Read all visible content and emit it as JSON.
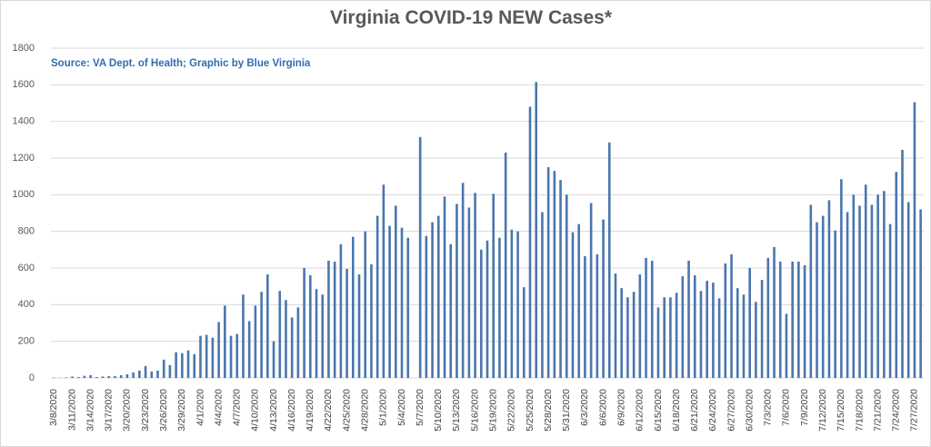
{
  "chart_data": {
    "type": "bar",
    "title": "Virginia COVID-19 NEW Cases*",
    "subtitle": "Source: VA Dept. of Health; Graphic by Blue Virginia",
    "color": "#4a76ae",
    "grid": true,
    "ylim": [
      0,
      1800
    ],
    "yticks": [
      0,
      200,
      400,
      600,
      800,
      1000,
      1200,
      1400,
      1600,
      1800
    ],
    "categories": [
      "3/8/2020",
      null,
      null,
      "3/11/2020",
      null,
      null,
      "3/14/2020",
      null,
      null,
      "3/17/2020",
      null,
      null,
      "3/20/2020",
      null,
      null,
      "3/23/2020",
      null,
      null,
      "3/26/2020",
      null,
      null,
      "3/29/2020",
      null,
      null,
      "4/1/2020",
      null,
      null,
      "4/4/2020",
      null,
      null,
      "4/7/2020",
      null,
      null,
      "4/10/2020",
      null,
      null,
      "4/13/2020",
      null,
      null,
      "4/16/2020",
      null,
      null,
      "4/19/2020",
      null,
      null,
      "4/22/2020",
      null,
      null,
      "4/25/2020",
      null,
      null,
      "4/28/2020",
      null,
      null,
      "5/1/2020",
      null,
      null,
      "5/4/2020",
      null,
      null,
      "5/7/2020",
      null,
      null,
      "5/10/2020",
      null,
      null,
      "5/13/2020",
      null,
      null,
      "5/16/2020",
      null,
      null,
      "5/19/2020",
      null,
      null,
      "5/22/2020",
      null,
      null,
      "5/25/2020",
      null,
      null,
      "5/28/2020",
      null,
      null,
      "5/31/2020",
      null,
      null,
      "6/3/2020",
      null,
      null,
      "6/6/2020",
      null,
      null,
      "6/9/2020",
      null,
      null,
      "6/12/2020",
      null,
      null,
      "6/15/2020",
      null,
      null,
      "6/18/2020",
      null,
      null,
      "6/21/2020",
      null,
      null,
      "6/24/2020",
      null,
      null,
      "6/27/2020",
      null,
      null,
      "6/30/2020",
      null,
      null,
      "7/3/2020",
      null,
      null,
      "7/6/2020",
      null,
      null,
      "7/9/2020",
      null,
      null,
      "7/12/2020",
      null,
      null,
      "7/15/2020",
      null,
      null,
      "7/18/2020",
      null,
      null,
      "7/21/2020",
      null,
      null,
      "7/24/2020",
      null,
      null,
      "7/27/2020",
      null
    ],
    "values": [
      2,
      1,
      3,
      8,
      5,
      12,
      15,
      5,
      8,
      10,
      10,
      15,
      20,
      30,
      40,
      65,
      35,
      40,
      100,
      70,
      140,
      135,
      150,
      130,
      230,
      235,
      220,
      305,
      395,
      230,
      240,
      455,
      310,
      395,
      470,
      565,
      200,
      475,
      425,
      330,
      385,
      600,
      560,
      485,
      455,
      640,
      635,
      730,
      595,
      770,
      565,
      800,
      620,
      885,
      1055,
      830,
      940,
      820,
      765,
      0,
      1315,
      775,
      850,
      885,
      990,
      730,
      950,
      1065,
      930,
      1010,
      700,
      750,
      1005,
      765,
      1230,
      810,
      800,
      495,
      1480,
      1615,
      905,
      1150,
      1130,
      1080,
      1000,
      795,
      840,
      665,
      955,
      675,
      865,
      1285,
      570,
      490,
      440,
      470,
      565,
      655,
      640,
      385,
      440,
      440,
      465,
      555,
      640,
      560,
      475,
      530,
      520,
      435,
      625,
      675,
      490,
      455,
      600,
      415,
      535,
      655,
      715,
      635,
      350,
      635,
      635,
      615,
      945,
      850,
      885,
      970,
      805,
      1085,
      905,
      1000,
      940,
      1055,
      945,
      1000,
      1020,
      840,
      1125,
      1245,
      960,
      1505,
      920
    ]
  }
}
